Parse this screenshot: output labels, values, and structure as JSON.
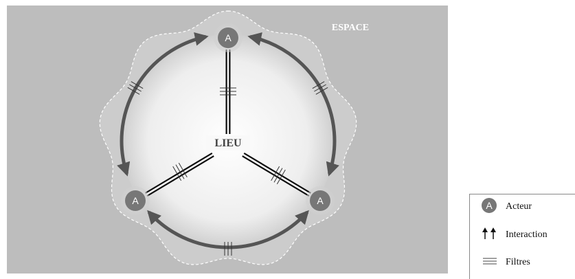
{
  "space": "ESPACE",
  "place": "LIEU",
  "actors": [
    {
      "label": "A"
    },
    {
      "label": "A"
    },
    {
      "label": "A"
    }
  ],
  "legend": [
    {
      "symbol": "A",
      "label": "Acteur"
    },
    {
      "label": "Interaction"
    },
    {
      "label": "Filtres"
    }
  ]
}
